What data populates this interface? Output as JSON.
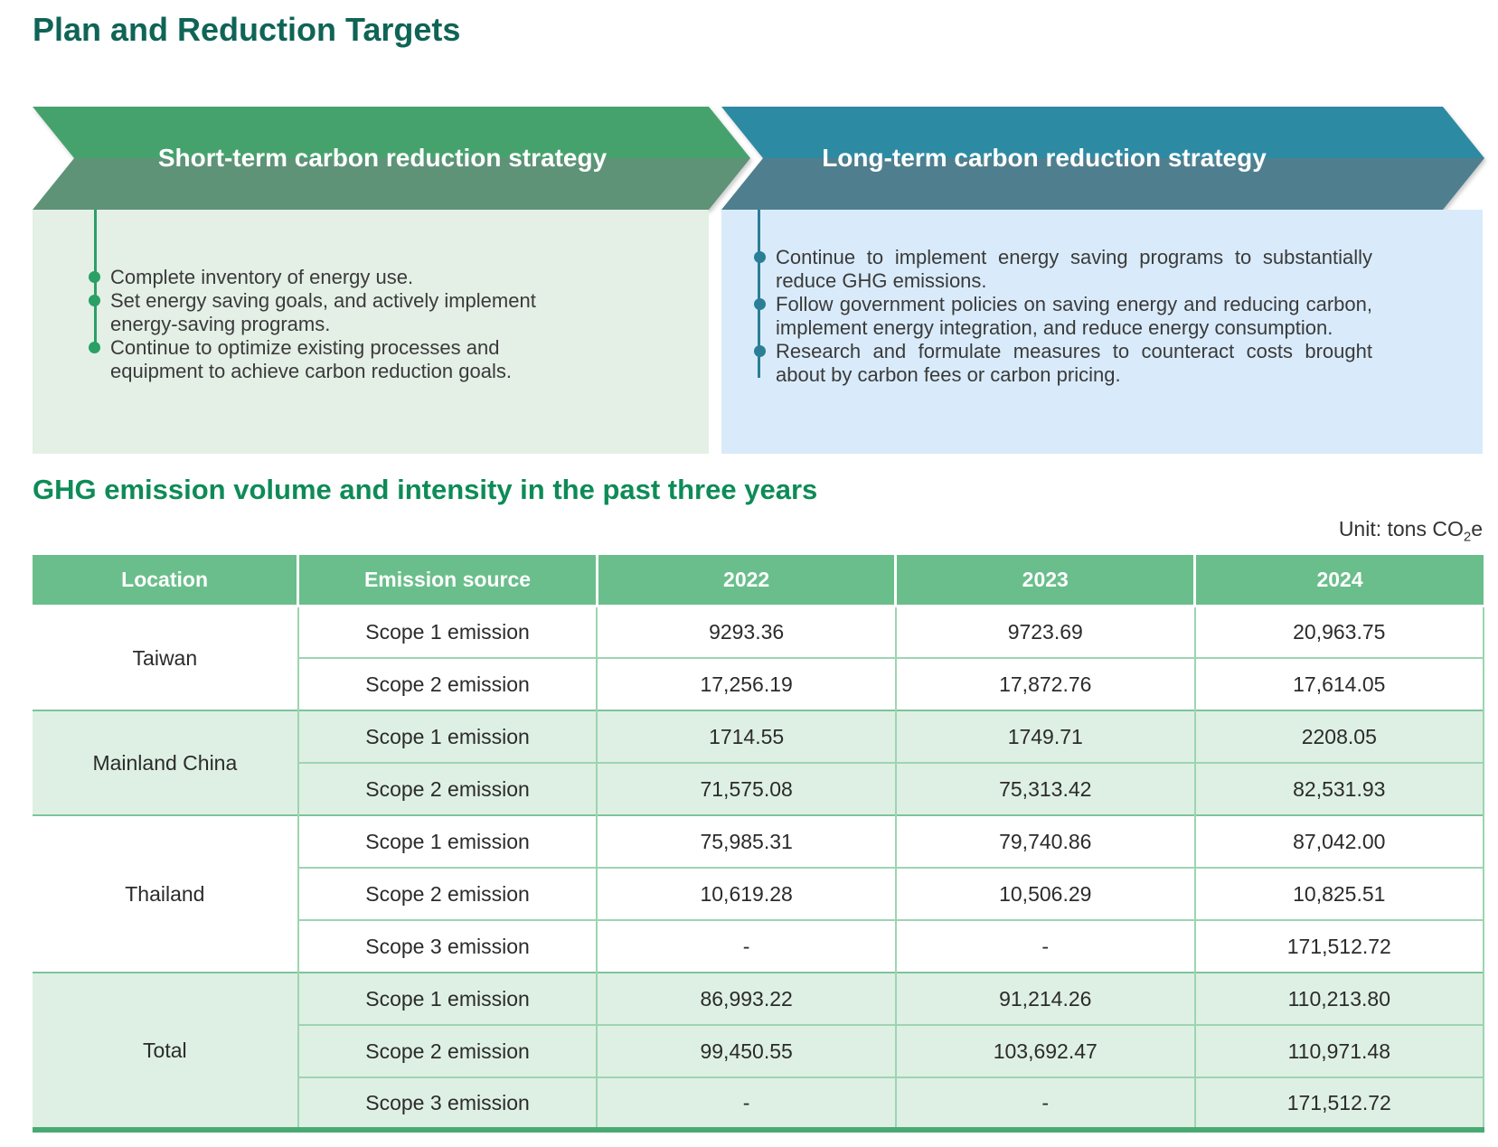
{
  "page": {
    "title": "Plan and Reduction Targets"
  },
  "strategies": {
    "short_term": {
      "title": "Short-term carbon reduction strategy",
      "bullets": [
        "Complete inventory of energy use.",
        "Set energy saving goals, and actively implement energy-saving programs.",
        "Continue to optimize existing processes and equipment to achieve carbon reduction goals."
      ]
    },
    "long_term": {
      "title": "Long-term carbon reduction strategy",
      "bullets": [
        "Continue to implement energy saving programs to substantially reduce GHG emissions.",
        "Follow government policies on saving energy and reducing carbon, implement energy integration, and reduce energy consumption.",
        "Research and formulate measures to counteract costs brought about by carbon fees or carbon pricing."
      ]
    }
  },
  "ghg_section": {
    "title": "GHG emission volume and intensity in the past three years",
    "unit_prefix": "Unit: tons CO",
    "unit_sub": "2",
    "unit_suffix": "e"
  },
  "table": {
    "headers": [
      "Location",
      "Emission source",
      "2022",
      "2023",
      "2024"
    ],
    "groups": [
      {
        "location": "Taiwan",
        "rows": [
          {
            "source": "Scope 1 emission",
            "values": [
              "9293.36",
              "9723.69",
              "20,963.75"
            ]
          },
          {
            "source": "Scope 2 emission",
            "values": [
              "17,256.19",
              "17,872.76",
              "17,614.05"
            ]
          }
        ]
      },
      {
        "location": "Mainland China",
        "rows": [
          {
            "source": "Scope 1 emission",
            "values": [
              "1714.55",
              "1749.71",
              "2208.05"
            ]
          },
          {
            "source": "Scope 2 emission",
            "values": [
              "71,575.08",
              "75,313.42",
              "82,531.93"
            ]
          }
        ]
      },
      {
        "location": "Thailand",
        "rows": [
          {
            "source": "Scope 1 emission",
            "values": [
              "75,985.31",
              "79,740.86",
              "87,042.00"
            ]
          },
          {
            "source": "Scope 2 emission",
            "values": [
              "10,619.28",
              "10,506.29",
              "10,825.51"
            ]
          },
          {
            "source": "Scope 3 emission",
            "values": [
              "-",
              "-",
              "171,512.72"
            ]
          }
        ]
      },
      {
        "location": "Total",
        "rows": [
          {
            "source": "Scope 1 emission",
            "values": [
              "86,993.22",
              "91,214.26",
              "110,213.80"
            ]
          },
          {
            "source": "Scope 2 emission",
            "values": [
              "99,450.55",
              "103,692.47",
              "110,971.48"
            ]
          },
          {
            "source": "Scope 3 emission",
            "values": [
              "-",
              "-",
              "171,512.72"
            ]
          }
        ]
      }
    ]
  },
  "colors": {
    "title_teal": "#0f6456",
    "section_green": "#0e8b57",
    "short_banner_top": "#46a26d",
    "short_banner_bottom": "#5e9378",
    "long_banner_top": "#2d8aa3",
    "long_banner_bottom": "#4f7f8e",
    "short_panel_bg": "#e4efe6",
    "long_panel_bg": "#d9ebfa",
    "short_accent": "#2aa066",
    "long_accent": "#2a7f96",
    "table_header_bg": "#6abe8b",
    "table_shade_bg": "#def0e3",
    "table_line": "#9ed4b2",
    "table_group_line": "#7cc49a",
    "table_bottom_border": "#49a973",
    "body_text": "#3a3a3a"
  }
}
